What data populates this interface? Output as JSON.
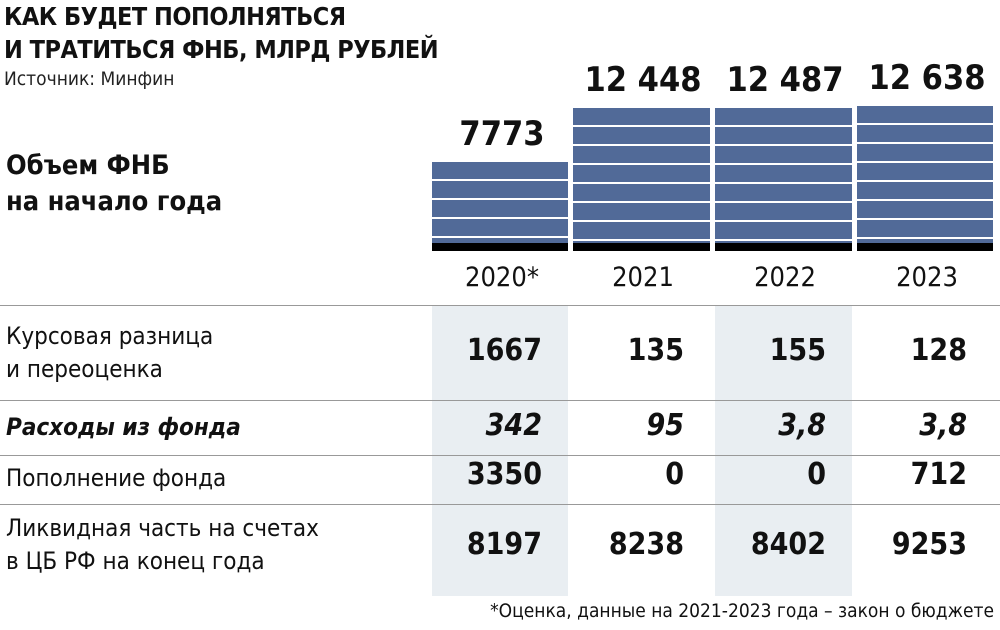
{
  "title_lines": [
    "КАК БУДЕТ ПОПОЛНЯТЬСЯ",
    "И ТРАТИТЬСЯ ФНБ, МЛРД РУБЛЕЙ"
  ],
  "source": "Источник: Минфин",
  "footnote": "*Оценка, данные на 2021-2023 года – закон о бюджете",
  "chart_data": {
    "type": "bar",
    "title": "Объем ФНБ на начало года",
    "title_lines": [
      "Объем ФНБ",
      "на начало года"
    ],
    "categories": [
      "2020*",
      "2021",
      "2022",
      "2023"
    ],
    "values": [
      7773,
      12448,
      12487,
      12638
    ],
    "value_labels": [
      "7773",
      "12 448",
      "12 487",
      "12 638"
    ],
    "ylabel": "млрд рублей"
  },
  "table": {
    "columns": [
      "2020*",
      "2021",
      "2022",
      "2023"
    ],
    "rows": [
      {
        "label_lines": [
          "Курсовая разница",
          "и переоценка"
        ],
        "values": [
          "1667",
          "135",
          "155",
          "128"
        ]
      },
      {
        "label_lines": [
          "Расходы из фонда"
        ],
        "values": [
          "342",
          "95",
          "3,8",
          "3,8"
        ]
      },
      {
        "label_lines": [
          "Пополнение фонда"
        ],
        "values": [
          "3350",
          "0",
          "0",
          "712"
        ]
      },
      {
        "label_lines": [
          "Ликвидная часть на счетах",
          "в ЦБ РФ на конец года"
        ],
        "values": [
          "8197",
          "8238",
          "8402",
          "9253"
        ]
      }
    ]
  },
  "colors": {
    "bar": "#516a98",
    "shade": "#e9eef2"
  }
}
